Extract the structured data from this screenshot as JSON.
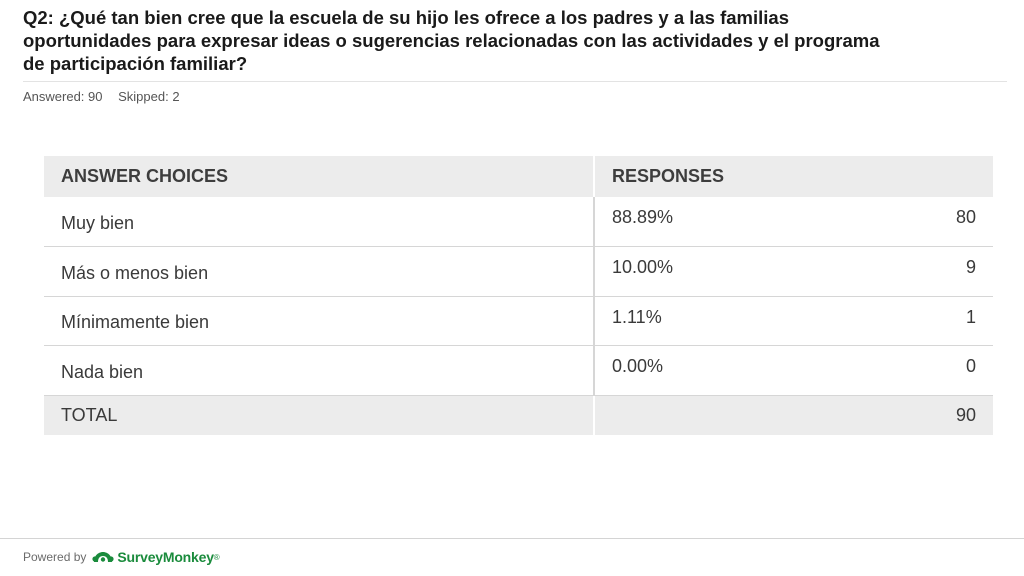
{
  "question": {
    "title": "Q2: ¿Qué tan bien cree que la escuela de su hijo les ofrece a los padres y a las familias oportunidades para expresar ideas o sugerencias relacionadas con las actividades y el programa de participación familiar?",
    "answered": "Answered: 90",
    "skipped": "Skipped: 2"
  },
  "table": {
    "header_choices": "ANSWER CHOICES",
    "header_responses": "RESPONSES",
    "rows": [
      {
        "choice": "Muy bien",
        "percent": "88.89%",
        "count": "80"
      },
      {
        "choice": "Más o menos bien",
        "percent": "10.00%",
        "count": "9"
      },
      {
        "choice": "Mínimamente bien",
        "percent": "1.11%",
        "count": "1"
      },
      {
        "choice": "Nada bien",
        "percent": "0.00%",
        "count": "0"
      }
    ],
    "total_label": "TOTAL",
    "total_count": "90"
  },
  "footer": {
    "powered_by": "Powered by",
    "brand": "SurveyMonkey",
    "reg_mark": "®",
    "logo_icon": "surveymonkey-logo-icon",
    "brand_color": "#1a8b3c"
  }
}
